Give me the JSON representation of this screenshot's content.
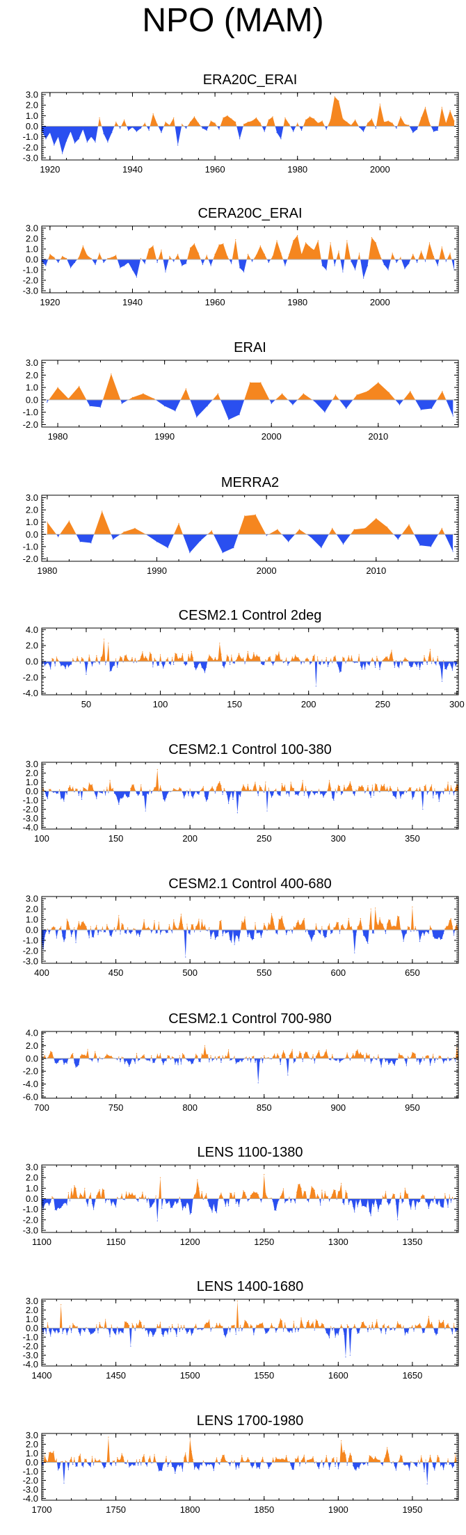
{
  "title": "NPO (MAM)",
  "colors": {
    "positive": "#f5861f",
    "negative": "#2a4ff0",
    "axis": "#000000",
    "zero_line": "#b0b0b0"
  },
  "chart_data": [
    {
      "type": "area",
      "title": "ERA20C_ERAI",
      "xlim": [
        1918,
        2019
      ],
      "ylim": [
        -3.2,
        3.2
      ],
      "yticks": [
        3,
        2,
        1,
        0,
        -1,
        -2,
        -3
      ],
      "ytick_labels": [
        "3.0",
        "2.0",
        "1.0",
        "0.0",
        "-1.0",
        "-2.0",
        "-3.0"
      ],
      "xticks": [
        1920,
        1940,
        1960,
        1980,
        2000
      ],
      "xtick_labels": [
        "1920",
        "1940",
        "1960",
        "1980",
        "2000"
      ],
      "x": [
        1918,
        1919,
        1920,
        1921,
        1922,
        1923,
        1924,
        1925,
        1926,
        1927,
        1928,
        1929,
        1930,
        1931,
        1932,
        1933,
        1934,
        1935,
        1936,
        1937,
        1938,
        1939,
        1940,
        1941,
        1942,
        1943,
        1944,
        1945,
        1946,
        1947,
        1948,
        1949,
        1950,
        1951,
        1952,
        1953,
        1954,
        1955,
        1956,
        1957,
        1958,
        1959,
        1960,
        1961,
        1962,
        1963,
        1964,
        1965,
        1966,
        1967,
        1968,
        1969,
        1970,
        1971,
        1972,
        1973,
        1974,
        1975,
        1976,
        1977,
        1978,
        1979,
        1980,
        1981,
        1982,
        1983,
        1984,
        1985,
        1986,
        1987,
        1988,
        1989,
        1990,
        1991,
        1992,
        1993,
        1994,
        1995,
        1996,
        1997,
        1998,
        1999,
        2000,
        2001,
        2002,
        2003,
        2004,
        2005,
        2006,
        2007,
        2008,
        2009,
        2010,
        2011,
        2012,
        2013,
        2014,
        2015,
        2016,
        2017,
        2018
      ],
      "values": [
        -0.4,
        -1.2,
        -0.6,
        -1.8,
        -1.0,
        -2.6,
        -1.4,
        -0.5,
        -1.6,
        -1.2,
        -0.3,
        -1.5,
        -1.0,
        -1.5,
        0.8,
        -0.7,
        -1.5,
        -0.6,
        0.4,
        -0.2,
        0.6,
        -0.4,
        -0.1,
        -0.5,
        -0.2,
        0.3,
        -0.4,
        1.2,
        0.2,
        -0.6,
        0.4,
        0.1,
        0.8,
        -1.8,
        0.2,
        -0.2,
        0.4,
        0.9,
        0.3,
        -0.2,
        -0.4,
        0.5,
        0.3,
        -0.3,
        0.8,
        1.0,
        0.7,
        0.4,
        -1.2,
        0.2,
        0.4,
        0.5,
        0.8,
        0.3,
        -0.5,
        0.6,
        0.9,
        -0.6,
        -1.2,
        0.8,
        0.2,
        -0.5,
        0.3,
        -0.4,
        0.6,
        0.9,
        0.7,
        0.3,
        0.5,
        -0.3,
        0.6,
        2.8,
        2.4,
        0.7,
        0.4,
        0.1,
        0.6,
        -0.1,
        -0.5,
        0.3,
        0.7,
        -0.2,
        2.1,
        0.4,
        0.5,
        0.3,
        -0.2,
        0.9,
        0.2,
        0.1,
        -0.6,
        -0.3,
        0.8,
        1.8,
        0.3,
        -0.5,
        -0.4,
        1.8,
        0.3,
        1.5,
        0.5
      ]
    },
    {
      "type": "area",
      "title": "CERA20C_ERAI",
      "xlim": [
        1918,
        2019
      ],
      "ylim": [
        -3.2,
        3.2
      ],
      "yticks": [
        3,
        2,
        1,
        0,
        -1,
        -2,
        -3
      ],
      "ytick_labels": [
        "3.0",
        "2.0",
        "1.0",
        "0.0",
        "-1.0",
        "-2.0",
        "-3.0"
      ],
      "xticks": [
        1920,
        1940,
        1960,
        1980,
        2000
      ],
      "xtick_labels": [
        "1920",
        "1940",
        "1960",
        "1980",
        "2000"
      ],
      "x": [
        1918,
        1919,
        1920,
        1921,
        1922,
        1923,
        1924,
        1925,
        1926,
        1927,
        1928,
        1929,
        1930,
        1931,
        1932,
        1933,
        1934,
        1935,
        1936,
        1937,
        1938,
        1939,
        1940,
        1941,
        1942,
        1943,
        1944,
        1945,
        1946,
        1947,
        1948,
        1949,
        1950,
        1951,
        1952,
        1953,
        1954,
        1955,
        1956,
        1957,
        1958,
        1959,
        1960,
        1961,
        1962,
        1963,
        1964,
        1965,
        1966,
        1967,
        1968,
        1969,
        1970,
        1971,
        1972,
        1973,
        1974,
        1975,
        1976,
        1977,
        1978,
        1979,
        1980,
        1981,
        1982,
        1983,
        1984,
        1985,
        1986,
        1987,
        1988,
        1989,
        1990,
        1991,
        1992,
        1993,
        1994,
        1995,
        1996,
        1997,
        1998,
        1999,
        2000,
        2001,
        2002,
        2003,
        2004,
        2005,
        2006,
        2007,
        2008,
        2009,
        2010,
        2011,
        2012,
        2013,
        2014,
        2015,
        2016,
        2017,
        2018
      ],
      "values": [
        -0.2,
        -0.6,
        0.5,
        0.2,
        -0.3,
        0.3,
        0.1,
        -0.8,
        -0.3,
        0.2,
        1.3,
        0.4,
        0.1,
        -0.5,
        0.6,
        -0.3,
        0.1,
        0.2,
        0.4,
        -0.8,
        -0.6,
        -0.3,
        -1.0,
        -1.7,
        0.1,
        -0.4,
        1.0,
        1.3,
        -0.3,
        0.9,
        -1.2,
        0.3,
        -0.2,
        0.5,
        -0.6,
        -0.4,
        1.1,
        1.5,
        0.6,
        -0.5,
        0.4,
        -0.6,
        0.5,
        1.4,
        1.5,
        0.3,
        -0.4,
        1.9,
        -0.8,
        -1.2,
        0.5,
        -0.2,
        0.4,
        1.3,
        0.5,
        -0.3,
        0.3,
        1.8,
        0.6,
        -0.6,
        0.5,
        1.8,
        2.3,
        0.5,
        1.6,
        1.2,
        0.9,
        1.8,
        -0.6,
        -1.0,
        1.6,
        -0.6,
        0.8,
        -1.2,
        1.8,
        -0.2,
        -1.0,
        0.6,
        -1.8,
        -0.6,
        2.1,
        1.6,
        0.4,
        -0.5,
        -1.0,
        0.6,
        -0.3,
        0.2,
        -0.9,
        -0.4,
        0.5,
        -0.3,
        0.8,
        -0.2,
        1.6,
        0.3,
        -0.6,
        1.2,
        -0.2,
        0.6,
        -1.0
      ]
    },
    {
      "type": "area",
      "title": "ERAI",
      "xlim": [
        1978.5,
        2017.5
      ],
      "ylim": [
        -2.2,
        3.2
      ],
      "yticks": [
        3,
        2,
        1,
        0,
        -1,
        -2
      ],
      "ytick_labels": [
        "3.0",
        "2.0",
        "1.0",
        "0.0",
        "-1.0",
        "-2.0"
      ],
      "xticks": [
        1980,
        1990,
        2000,
        2010
      ],
      "xtick_labels": [
        "1980",
        "1990",
        "2000",
        "2010"
      ],
      "x": [
        1979,
        1980,
        1981,
        1982,
        1983,
        1984,
        1985,
        1986,
        1987,
        1988,
        1989,
        1990,
        1991,
        1992,
        1993,
        1994,
        1995,
        1996,
        1997,
        1998,
        1999,
        2000,
        2001,
        2002,
        2003,
        2004,
        2005,
        2006,
        2007,
        2008,
        2009,
        2010,
        2011,
        2012,
        2013,
        2014,
        2015,
        2016,
        2017
      ],
      "values": [
        -0.2,
        1.0,
        0.1,
        1.1,
        -0.5,
        -0.6,
        2.1,
        -0.3,
        0.2,
        0.5,
        0.1,
        -0.5,
        -0.9,
        0.9,
        -1.4,
        -0.5,
        0.5,
        -1.6,
        -1.2,
        1.4,
        1.4,
        -0.3,
        0.5,
        -0.4,
        0.5,
        -0.1,
        -1.0,
        0.4,
        -0.7,
        0.4,
        0.7,
        1.4,
        0.6,
        -0.4,
        0.7,
        -0.8,
        -0.7,
        0.7,
        -1.3
      ]
    },
    {
      "type": "area",
      "title": "MERRA2",
      "xlim": [
        1979.5,
        2017.5
      ],
      "ylim": [
        -2.2,
        3.2
      ],
      "yticks": [
        3,
        2,
        1,
        0,
        -1,
        -2
      ],
      "ytick_labels": [
        "3.0",
        "2.0",
        "1.0",
        "0.0",
        "-1.0",
        "-2.0"
      ],
      "xticks": [
        1980,
        1990,
        2000,
        2010
      ],
      "xtick_labels": [
        "1980",
        "1990",
        "2000",
        "2010"
      ],
      "x": [
        1980,
        1981,
        1982,
        1983,
        1984,
        1985,
        1986,
        1987,
        1988,
        1989,
        1990,
        1991,
        1992,
        1993,
        1994,
        1995,
        1996,
        1997,
        1998,
        1999,
        2000,
        2001,
        2002,
        2003,
        2004,
        2005,
        2006,
        2007,
        2008,
        2009,
        2010,
        2011,
        2012,
        2013,
        2014,
        2015,
        2016,
        2017
      ],
      "values": [
        1.0,
        -0.2,
        1.1,
        -0.6,
        -0.7,
        1.9,
        -0.4,
        0.2,
        0.5,
        0.0,
        -0.6,
        -1.1,
        0.9,
        -1.5,
        -0.5,
        0.3,
        -1.5,
        -1.1,
        1.5,
        1.6,
        -0.1,
        0.4,
        -0.6,
        0.4,
        -0.2,
        -1.1,
        0.5,
        -0.8,
        0.4,
        0.5,
        1.3,
        0.6,
        -0.4,
        0.8,
        -0.9,
        -1.0,
        0.5,
        -1.4
      ]
    },
    {
      "type": "area",
      "title": "CESM2.1 Control 2deg",
      "xlim": [
        20,
        301
      ],
      "ylim": [
        -4.2,
        4.2
      ],
      "yticks": [
        4,
        2,
        0,
        -2,
        -4
      ],
      "ytick_labels": [
        "4.0",
        "2.0",
        "0.0",
        "-2.0",
        "-4.0"
      ],
      "xticks": [
        50,
        100,
        150,
        200,
        250,
        300
      ],
      "xtick_labels": [
        "50",
        "100",
        "150",
        "200",
        "250",
        "300"
      ],
      "seed": 11,
      "amplitude": 1.0,
      "peaks": [
        [
          62,
          2.8
        ],
        [
          65,
          2.3
        ],
        [
          140,
          2.3
        ],
        [
          205,
          -3.1
        ],
        [
          290,
          -2.5
        ]
      ]
    },
    {
      "type": "area",
      "title": "CESM2.1 Control 100-380",
      "xlim": [
        100,
        381
      ],
      "ylim": [
        -4.2,
        3.2
      ],
      "yticks": [
        3,
        2,
        1,
        0,
        -1,
        -2,
        -3,
        -4
      ],
      "ytick_labels": [
        "3.0",
        "2.0",
        "1.0",
        "0.0",
        "-1.0",
        "-2.0",
        "-3.0",
        "-4.0"
      ],
      "xticks": [
        100,
        150,
        200,
        250,
        300,
        350
      ],
      "xtick_labels": [
        "100",
        "150",
        "200",
        "250",
        "300",
        "350"
      ],
      "seed": 23,
      "amplitude": 0.9,
      "peaks": [
        [
          178,
          2.4
        ],
        [
          170,
          -2.2
        ],
        [
          232,
          -2.4
        ],
        [
          252,
          -2.2
        ],
        [
          357,
          -2.0
        ]
      ]
    },
    {
      "type": "area",
      "title": "CESM2.1 Control 400-680",
      "xlim": [
        400,
        681
      ],
      "ylim": [
        -3.2,
        3.2
      ],
      "yticks": [
        3,
        2,
        1,
        0,
        -1,
        -2,
        -3
      ],
      "ytick_labels": [
        "3.0",
        "2.0",
        "1.0",
        "0.0",
        "-1.0",
        "-2.0",
        "-3.0"
      ],
      "xticks": [
        400,
        450,
        500,
        550,
        600,
        650
      ],
      "xtick_labels": [
        "400",
        "450",
        "500",
        "550",
        "600",
        "650"
      ],
      "seed": 37,
      "amplitude": 1.0,
      "peaks": [
        [
          622,
          2.0
        ],
        [
          625,
          2.1
        ],
        [
          650,
          2.2
        ],
        [
          497,
          -2.6
        ],
        [
          611,
          -2.2
        ],
        [
          401,
          -2.0
        ]
      ]
    },
    {
      "type": "area",
      "title": "CESM2.1 Control 700-980",
      "xlim": [
        700,
        981
      ],
      "ylim": [
        -6.2,
        4.2
      ],
      "yticks": [
        4,
        2,
        0,
        -2,
        -4,
        -6
      ],
      "ytick_labels": [
        "4.0",
        "2.0",
        "0.0",
        "-2.0",
        "-4.0",
        "-6.0"
      ],
      "xticks": [
        700,
        750,
        800,
        850,
        900,
        950
      ],
      "xtick_labels": [
        "700",
        "750",
        "800",
        "850",
        "900",
        "950"
      ],
      "seed": 51,
      "amplitude": 1.0,
      "peaks": [
        [
          810,
          2.0
        ],
        [
          980,
          2.0
        ],
        [
          846,
          -3.8
        ],
        [
          866,
          -2.6
        ]
      ]
    },
    {
      "type": "area",
      "title": "LENS 1100-1380",
      "xlim": [
        1100,
        1381
      ],
      "ylim": [
        -3.2,
        3.2
      ],
      "yticks": [
        3,
        2,
        1,
        0,
        -1,
        -2,
        -3
      ],
      "ytick_labels": [
        "3.0",
        "2.0",
        "1.0",
        "0.0",
        "-1.0",
        "-2.0",
        "-3.0"
      ],
      "xticks": [
        1100,
        1150,
        1200,
        1250,
        1300,
        1350
      ],
      "xtick_labels": [
        "1100",
        "1150",
        "1200",
        "1250",
        "1300",
        "1350"
      ],
      "seed": 67,
      "amplitude": 1.0,
      "peaks": [
        [
          1180,
          2.0
        ],
        [
          1250,
          2.3
        ],
        [
          1205,
          1.8
        ],
        [
          1340,
          -2.0
        ],
        [
          1178,
          -2.1
        ]
      ]
    },
    {
      "type": "area",
      "title": "LENS 1400-1680",
      "xlim": [
        1400,
        1681
      ],
      "ylim": [
        -4.2,
        3.2
      ],
      "yticks": [
        3,
        2,
        1,
        0,
        -1,
        -2,
        -3,
        -4
      ],
      "ytick_labels": [
        "3.0",
        "2.0",
        "1.0",
        "0.0",
        "-1.0",
        "-2.0",
        "-3.0",
        "-4.0"
      ],
      "xticks": [
        1400,
        1450,
        1500,
        1550,
        1600,
        1650
      ],
      "xtick_labels": [
        "1400",
        "1450",
        "1500",
        "1550",
        "1600",
        "1650"
      ],
      "seed": 79,
      "amplitude": 0.9,
      "peaks": [
        [
          1413,
          2.6
        ],
        [
          1532,
          3.0
        ],
        [
          1605,
          -3.2
        ],
        [
          1608,
          -3.0
        ],
        [
          1460,
          -2.0
        ]
      ]
    },
    {
      "type": "area",
      "title": "LENS 1700-1980",
      "xlim": [
        1700,
        1981
      ],
      "ylim": [
        -4.2,
        3.2
      ],
      "yticks": [
        3,
        2,
        1,
        0,
        -1,
        -2,
        -3,
        -4
      ],
      "ytick_labels": [
        "3.0",
        "2.0",
        "1.0",
        "0.0",
        "-1.0",
        "-2.0",
        "-3.0",
        "-4.0"
      ],
      "xticks": [
        1700,
        1750,
        1800,
        1850,
        1900,
        1950
      ],
      "xtick_labels": [
        "1700",
        "1750",
        "1800",
        "1850",
        "1900",
        "1950"
      ],
      "seed": 93,
      "amplitude": 0.9,
      "peaks": [
        [
          1745,
          2.8
        ],
        [
          1800,
          2.6
        ],
        [
          1902,
          2.4
        ],
        [
          1715,
          -2.3
        ],
        [
          1960,
          -2.4
        ]
      ]
    }
  ]
}
